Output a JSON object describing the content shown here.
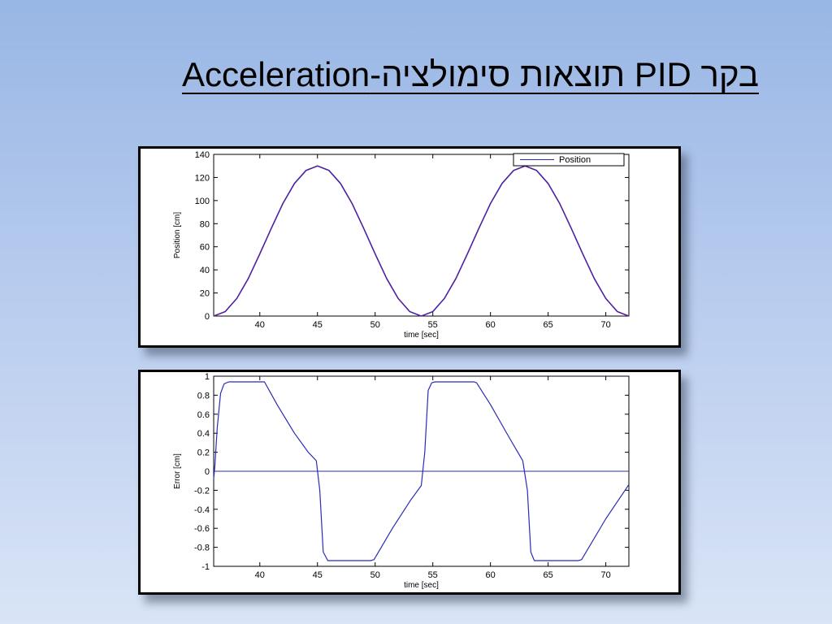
{
  "slide": {
    "title": "בקר PID תוצאות סימולציה-Acceleration"
  },
  "colors": {
    "series": "#2b2bb8",
    "reference": "#c0186a",
    "axis": "#000000",
    "zero_line": "#2b2bb8"
  },
  "chart_data": [
    {
      "type": "line",
      "title": "",
      "xlabel": "time [sec]",
      "ylabel": "Position [cm]",
      "xlim": [
        36,
        72
      ],
      "ylim": [
        0,
        140
      ],
      "xticks": [
        40,
        45,
        50,
        55,
        60,
        65,
        70
      ],
      "yticks": [
        0,
        20,
        40,
        60,
        80,
        100,
        120,
        140
      ],
      "grid": false,
      "legend": {
        "position": "top-right",
        "entries": [
          "Position"
        ]
      },
      "series": [
        {
          "name": "Position",
          "x": [
            36,
            37,
            38,
            39,
            40,
            41,
            42,
            43,
            44,
            45,
            46,
            47,
            48,
            49,
            50,
            51,
            52,
            53,
            54,
            55,
            56,
            57,
            58,
            59,
            60,
            61,
            62,
            63,
            64,
            65,
            66,
            67,
            68,
            69,
            70,
            71,
            72
          ],
          "y": [
            0,
            3.9,
            15.2,
            32.5,
            53.9,
            76.1,
            97.5,
            114.8,
            126.1,
            130,
            126.1,
            114.8,
            97.5,
            76.1,
            53.9,
            32.5,
            15.2,
            3.9,
            0,
            3.9,
            15.2,
            32.5,
            53.9,
            76.1,
            97.5,
            114.8,
            126.1,
            130,
            126.1,
            114.8,
            97.5,
            76.1,
            53.9,
            32.5,
            15.2,
            3.9,
            0
          ]
        }
      ]
    },
    {
      "type": "line",
      "title": "",
      "xlabel": "time [sec]",
      "ylabel": "Error [cm]",
      "xlim": [
        36,
        72
      ],
      "ylim": [
        -1,
        1
      ],
      "xticks": [
        40,
        45,
        50,
        55,
        60,
        65,
        70
      ],
      "yticks": [
        -1,
        -0.8,
        -0.6,
        -0.4,
        -0.2,
        0,
        0.2,
        0.4,
        0.6,
        0.8,
        1
      ],
      "grid": false,
      "reference_line": 0,
      "series": [
        {
          "x": [
            36,
            36.1,
            36.3,
            36.6,
            36.9,
            37.3,
            40.2,
            40.4,
            41.5,
            43,
            44.2,
            44.9,
            45.2,
            45.5,
            45.9,
            49.6,
            49.9,
            51.5,
            53.1,
            54,
            54.3,
            54.6,
            54.9,
            55.2,
            58.6,
            58.8,
            60,
            61.5,
            62.8,
            63.2,
            63.5,
            63.8,
            67.6,
            67.9,
            70,
            72
          ],
          "y": [
            -0.08,
            0.05,
            0.45,
            0.82,
            0.92,
            0.94,
            0.94,
            0.94,
            0.7,
            0.4,
            0.2,
            0.11,
            -0.2,
            -0.85,
            -0.94,
            -0.94,
            -0.93,
            -0.6,
            -0.3,
            -0.15,
            0.2,
            0.85,
            0.93,
            0.94,
            0.94,
            0.93,
            0.7,
            0.38,
            0.11,
            -0.2,
            -0.85,
            -0.94,
            -0.94,
            -0.93,
            -0.5,
            -0.14
          ]
        }
      ]
    }
  ]
}
